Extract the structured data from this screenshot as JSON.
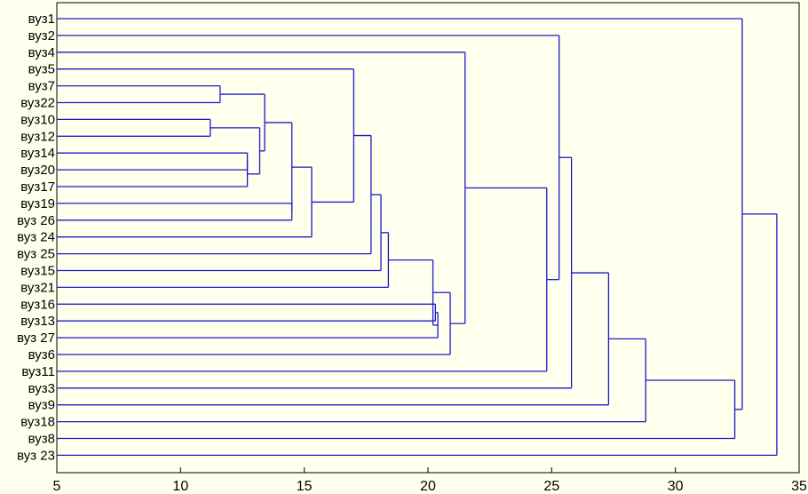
{
  "chart_data": {
    "type": "dendrogram",
    "orientation": "horizontal",
    "title": "",
    "xlabel": "",
    "ylabel": "",
    "xlim": [
      5,
      35
    ],
    "x_ticks": [
      5,
      10,
      15,
      20,
      25,
      30,
      35
    ],
    "line_color": "#1a1acc",
    "background": "#ffffee",
    "leaves": [
      "вуз1",
      "вуз2",
      "вуз4",
      "вуз5",
      "вуз7",
      "вуз22",
      "вуз10",
      "вуз12",
      "вуз14",
      "вуз20",
      "вуз17",
      "вуз19",
      "вуз 26",
      "вуз 24",
      "вуз 25",
      "вуз15",
      "вуз21",
      "вуз16",
      "вуз13",
      "вуз 27",
      "вуз6",
      "вуз11",
      "вуз3",
      "вуз9",
      "вуз18",
      "вуз8",
      "вуз 23"
    ],
    "merges": [
      {
        "id": "m1",
        "children": [
          "вуз10",
          "вуз12"
        ],
        "distance": 11.2
      },
      {
        "id": "m2",
        "children": [
          "вуз7",
          "вуз22"
        ],
        "distance": 11.6
      },
      {
        "id": "m3",
        "children": [
          "вуз14",
          "вуз20"
        ],
        "distance": 12.7
      },
      {
        "id": "m4",
        "children": [
          "m3",
          "вуз17"
        ],
        "distance": 12.7
      },
      {
        "id": "m5",
        "children": [
          "m1",
          "m4"
        ],
        "distance": 13.2
      },
      {
        "id": "m6",
        "children": [
          "m2",
          "m5"
        ],
        "distance": 13.4
      },
      {
        "id": "m7",
        "children": [
          "вуз19",
          "вуз 26"
        ],
        "distance": 14.5
      },
      {
        "id": "m8",
        "children": [
          "m6",
          "m7"
        ],
        "distance": 14.5
      },
      {
        "id": "m9",
        "children": [
          "m8",
          "вуз 24"
        ],
        "distance": 15.3
      },
      {
        "id": "m10",
        "children": [
          "вуз5",
          "m9"
        ],
        "distance": 17.0
      },
      {
        "id": "m11",
        "children": [
          "m10",
          "вуз 25"
        ],
        "distance": 17.7
      },
      {
        "id": "m12",
        "children": [
          "m11",
          "вуз15"
        ],
        "distance": 18.1
      },
      {
        "id": "m13",
        "children": [
          "m12",
          "вуз21"
        ],
        "distance": 18.4
      },
      {
        "id": "m14",
        "children": [
          "вуз16",
          "вуз13"
        ],
        "distance": 20.3
      },
      {
        "id": "m15",
        "children": [
          "m14",
          "вуз 27"
        ],
        "distance": 20.4
      },
      {
        "id": "m16",
        "children": [
          "m13",
          "m15"
        ],
        "distance": 20.2
      },
      {
        "id": "m17",
        "children": [
          "m16",
          "вуз6"
        ],
        "distance": 20.9
      },
      {
        "id": "m18",
        "children": [
          "вуз4",
          "m17"
        ],
        "distance": 21.5
      },
      {
        "id": "m19",
        "children": [
          "m18",
          "вуз11"
        ],
        "distance": 24.8
      },
      {
        "id": "m20",
        "children": [
          "вуз2",
          "m19"
        ],
        "distance": 25.3
      },
      {
        "id": "m21",
        "children": [
          "m20",
          "вуз3"
        ],
        "distance": 25.8
      },
      {
        "id": "m22",
        "children": [
          "m21",
          "вуз9"
        ],
        "distance": 27.3
      },
      {
        "id": "m23",
        "children": [
          "m22",
          "вуз18"
        ],
        "distance": 28.8
      },
      {
        "id": "m24",
        "children": [
          "m23",
          "вуз8"
        ],
        "distance": 32.4
      },
      {
        "id": "m25",
        "children": [
          "вуз1",
          "m24"
        ],
        "distance": 32.7
      },
      {
        "id": "m26",
        "children": [
          "m25",
          "вуз 23"
        ],
        "distance": 34.1
      }
    ]
  }
}
